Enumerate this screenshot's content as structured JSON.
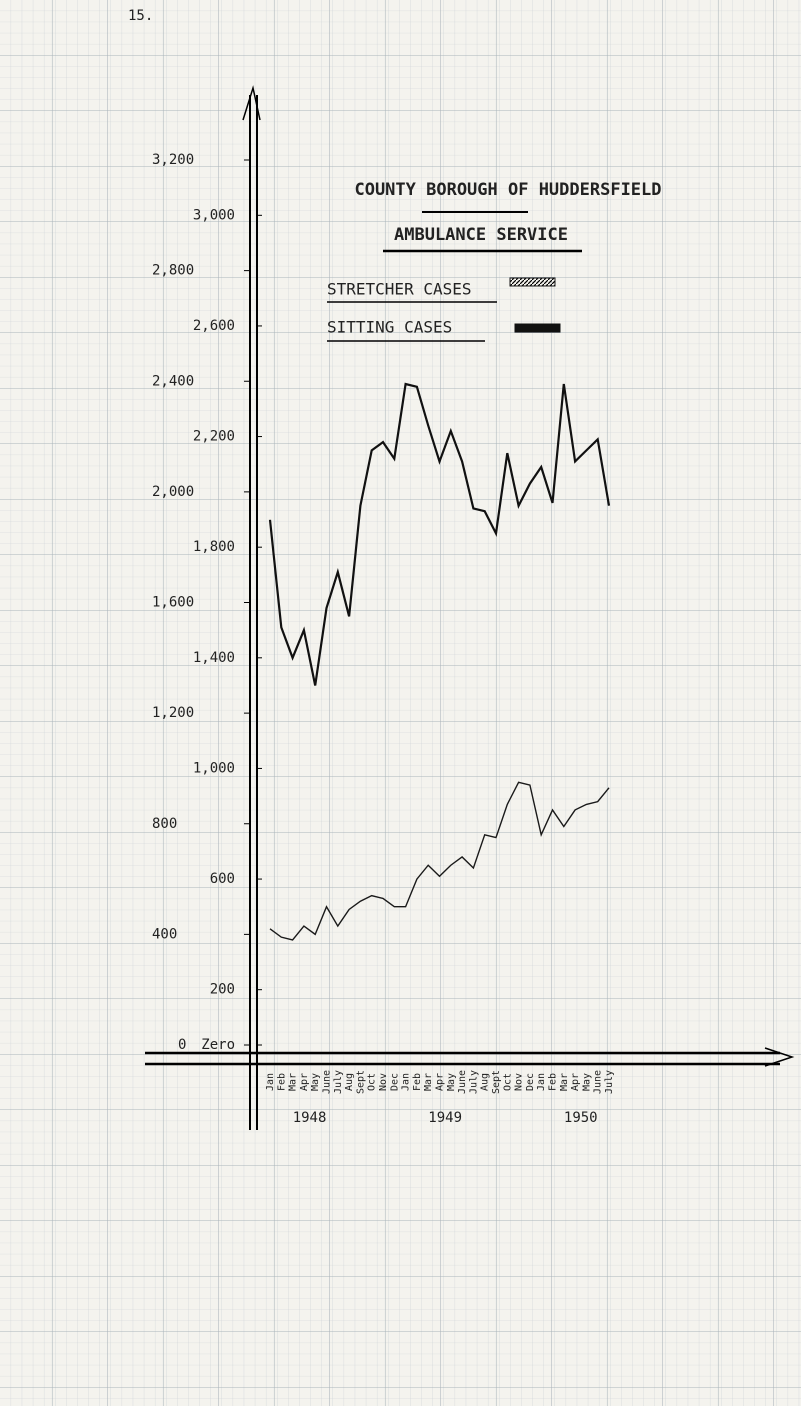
{
  "page_number": "15.",
  "chart_data": {
    "type": "line",
    "title": "COUNTY BOROUGH OF HUDDERSFIELD",
    "subtitle": "AMBULANCE SERVICE",
    "categories": [
      "Jan",
      "Feb",
      "Mar",
      "Apr",
      "May",
      "June",
      "July",
      "Aug",
      "Sept",
      "Oct",
      "Nov",
      "Dec",
      "Jan",
      "Feb",
      "Mar",
      "Apr",
      "May",
      "June",
      "July",
      "Aug",
      "Sept",
      "Oct",
      "Nov",
      "Dec",
      "Jan",
      "Feb",
      "Mar",
      "Apr",
      "May",
      "June",
      "July"
    ],
    "years": [
      "1948",
      "1949",
      "1950"
    ],
    "series": [
      {
        "name": "STRETCHER CASES",
        "color": "#1a1a1a",
        "values": [
          420,
          390,
          380,
          430,
          400,
          500,
          430,
          490,
          520,
          540,
          530,
          500,
          500,
          600,
          650,
          610,
          650,
          680,
          640,
          760,
          750,
          870,
          950,
          940,
          760,
          850,
          790,
          850,
          870,
          880,
          930
        ]
      },
      {
        "name": "SITTING CASES",
        "color": "#111111",
        "values": [
          1899,
          1510,
          1400,
          1500,
          1300,
          1580,
          1710,
          1550,
          1950,
          2150,
          2180,
          2120,
          2390,
          2380,
          2240,
          2110,
          2220,
          2110,
          1940,
          1930,
          1850,
          2140,
          1950,
          2030,
          2090,
          1960,
          2390,
          2110,
          2150,
          2190,
          1950
        ]
      }
    ],
    "ylim": [
      0,
      3200
    ],
    "yticks": [
      0,
      400,
      {
        "value": 800,
        "label": "800"
      },
      {
        "value": 1200,
        "label": "1,200"
      },
      {
        "value": 1600,
        "label": "1,600"
      },
      {
        "value": 2000,
        "label": "2,000"
      },
      {
        "value": 2400,
        "label": "2,400"
      },
      {
        "value": 2800,
        "label": "2,800"
      },
      {
        "value": 3200,
        "label": "3,200"
      }
    ],
    "y2lim": [
      0,
      3200
    ],
    "y2ticks": [
      {
        "value": 0,
        "label": "Zero"
      },
      200,
      600,
      {
        "value": 1000,
        "label": "1,000"
      },
      {
        "value": 1400,
        "label": "1,400"
      },
      {
        "value": 1800,
        "label": "1,800"
      },
      {
        "value": 2200,
        "label": "2,200"
      },
      {
        "value": 2600,
        "label": "2,600"
      },
      {
        "value": 3000,
        "label": "3,000"
      }
    ],
    "grid": false
  }
}
